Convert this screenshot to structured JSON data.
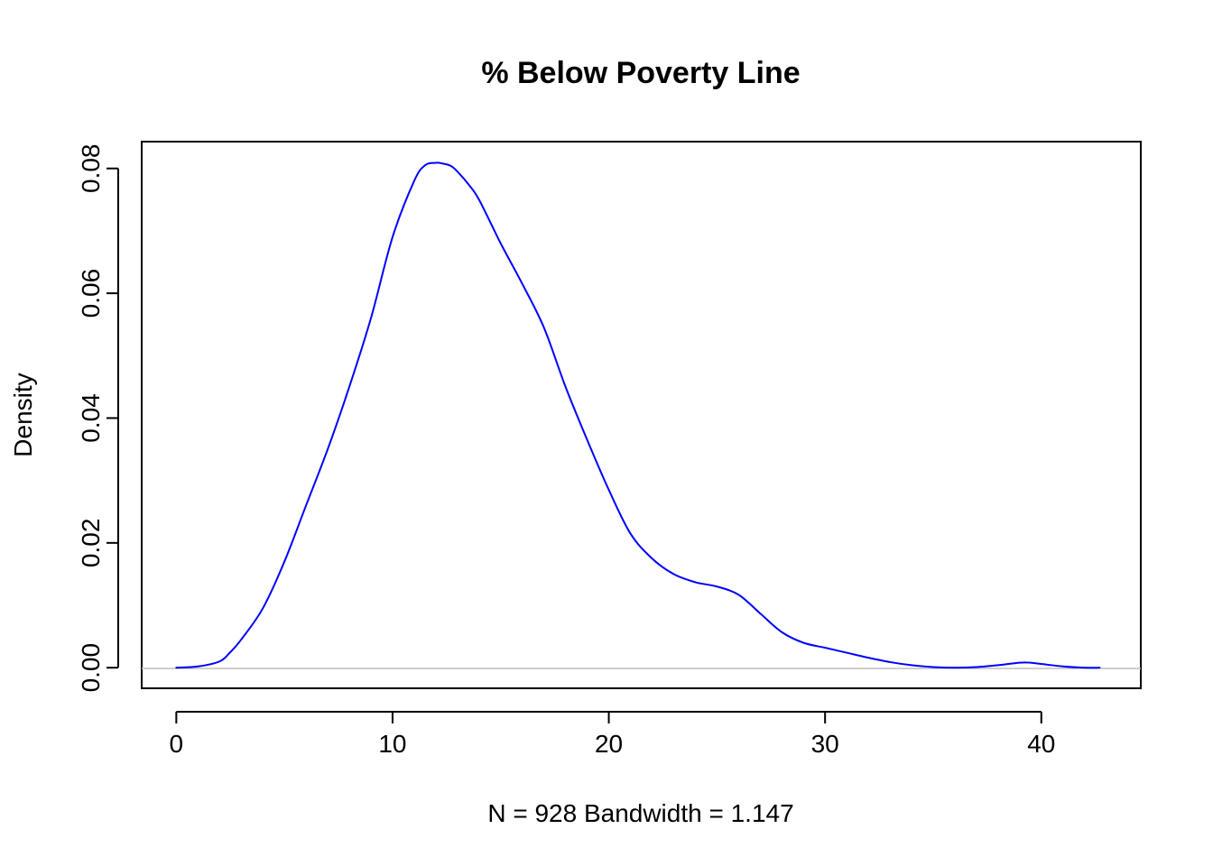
{
  "chart_data": {
    "type": "line",
    "title": "% Below Poverty Line",
    "xlabel": "N = 928   Bandwidth = 1.147",
    "ylabel": "Density",
    "xlim": [
      -1.6,
      44.6
    ],
    "ylim": [
      -0.0033,
      0.0843
    ],
    "x_ticks": [
      0,
      10,
      20,
      30,
      40
    ],
    "x_tick_labels": [
      "0",
      "10",
      "20",
      "30",
      "40"
    ],
    "y_ticks": [
      0.0,
      0.02,
      0.04,
      0.06,
      0.08
    ],
    "y_tick_labels": [
      "0.00",
      "0.02",
      "0.04",
      "0.06",
      "0.08"
    ],
    "grid": false,
    "baseline": 0,
    "series": [
      {
        "color": "#0000ff",
        "x": [
          0.0,
          1.0,
          2.0,
          2.5,
          3.0,
          4.0,
          5.0,
          6.0,
          7.0,
          8.0,
          9.0,
          10.0,
          11.0,
          11.5,
          12.0,
          12.3,
          12.7,
          13.0,
          13.5,
          14.0,
          15.0,
          16.0,
          17.0,
          18.0,
          19.0,
          20.0,
          21.0,
          22.0,
          23.0,
          24.0,
          25.0,
          26.0,
          27.0,
          28.0,
          29.0,
          30.0,
          31.0,
          32.0,
          33.0,
          34.0,
          35.0,
          36.0,
          37.0,
          38.0,
          39.0,
          39.5,
          40.0,
          41.0,
          42.0,
          42.7
        ],
        "y": [
          0.0,
          0.0002,
          0.001,
          0.0025,
          0.0045,
          0.0095,
          0.017,
          0.026,
          0.035,
          0.045,
          0.056,
          0.069,
          0.078,
          0.0805,
          0.0809,
          0.0808,
          0.0804,
          0.0795,
          0.0775,
          0.075,
          0.068,
          0.0615,
          0.0545,
          0.045,
          0.0365,
          0.0285,
          0.0215,
          0.0175,
          0.015,
          0.0137,
          0.013,
          0.0117,
          0.0087,
          0.0057,
          0.004,
          0.0032,
          0.0024,
          0.0016,
          0.0009,
          0.0004,
          0.0001,
          0.0,
          0.0001,
          0.0004,
          0.0008,
          0.0008,
          0.0006,
          0.0002,
          0.0,
          0.0
        ]
      }
    ]
  }
}
